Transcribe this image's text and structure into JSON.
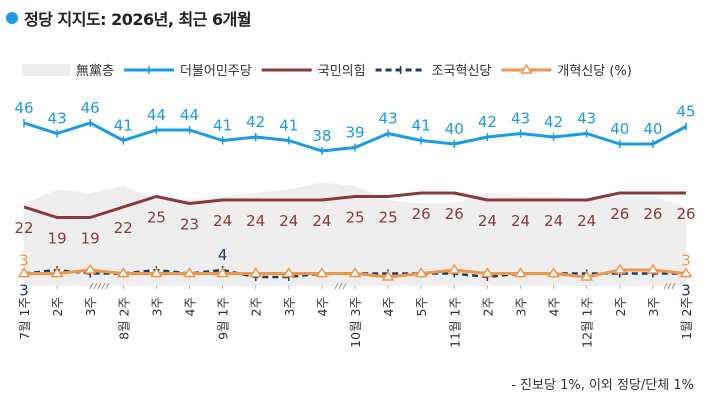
{
  "title": "정당 지지도: 2026년, 최근 6개월",
  "footnote": "- 진보당 1%, 이외 정당/단체 1%",
  "chart_data": {
    "type": "line",
    "title": "정당 지지도: 2026년, 최근 6개월",
    "unit_label": "(%)",
    "legend_position": "top",
    "grid": false,
    "ylim": [
      0,
      50
    ],
    "categories": [
      "7월 1주",
      "2주",
      "3주",
      "8월 2주",
      "3주",
      "4주",
      "9월 1주",
      "2주",
      "3주",
      "4주",
      "10월 3주",
      "4주",
      "5주",
      "11월 1주",
      "2주",
      "3주",
      "4주",
      "12월 1주",
      "2주",
      "3주",
      "1월 2주"
    ],
    "series": [
      {
        "name": "無黨층",
        "type": "area",
        "color": "#eeeeee",
        "values": [
          23,
          27,
          26,
          28,
          24,
          24,
          25,
          26,
          27,
          29,
          28,
          24,
          23,
          23,
          26,
          25,
          25,
          24,
          25,
          25,
          22
        ]
      },
      {
        "name": "더불어민주당",
        "color": "#1a9be6",
        "marker": "plus",
        "labels": "all",
        "values": [
          46,
          43,
          46,
          41,
          44,
          44,
          41,
          42,
          41,
          38,
          39,
          43,
          41,
          40,
          42,
          43,
          42,
          43,
          40,
          40,
          45
        ]
      },
      {
        "name": "국민의힘",
        "color": "#8b3a3a",
        "marker": "none",
        "labels": "all",
        "values": [
          22,
          19,
          19,
          22,
          25,
          23,
          24,
          24,
          24,
          24,
          25,
          25,
          26,
          26,
          24,
          24,
          24,
          24,
          26,
          26,
          26
        ]
      },
      {
        "name": "조국혁신당",
        "color": "#1f3d6b",
        "dashed": true,
        "marker": "plus",
        "labels": [
          0,
          6,
          20
        ],
        "values": [
          3,
          4,
          3,
          3,
          4,
          3,
          4,
          2,
          2,
          3,
          3,
          3,
          3,
          3,
          2,
          3,
          3,
          3,
          3,
          3,
          3
        ]
      },
      {
        "name": "개혁신당",
        "color": "#f0964a",
        "marker": "triangle",
        "labels": [
          0,
          20
        ],
        "values": [
          3,
          3,
          4,
          3,
          3,
          3,
          3,
          3,
          3,
          3,
          3,
          2,
          3,
          4,
          3,
          3,
          3,
          2,
          4,
          4,
          3
        ]
      }
    ]
  }
}
